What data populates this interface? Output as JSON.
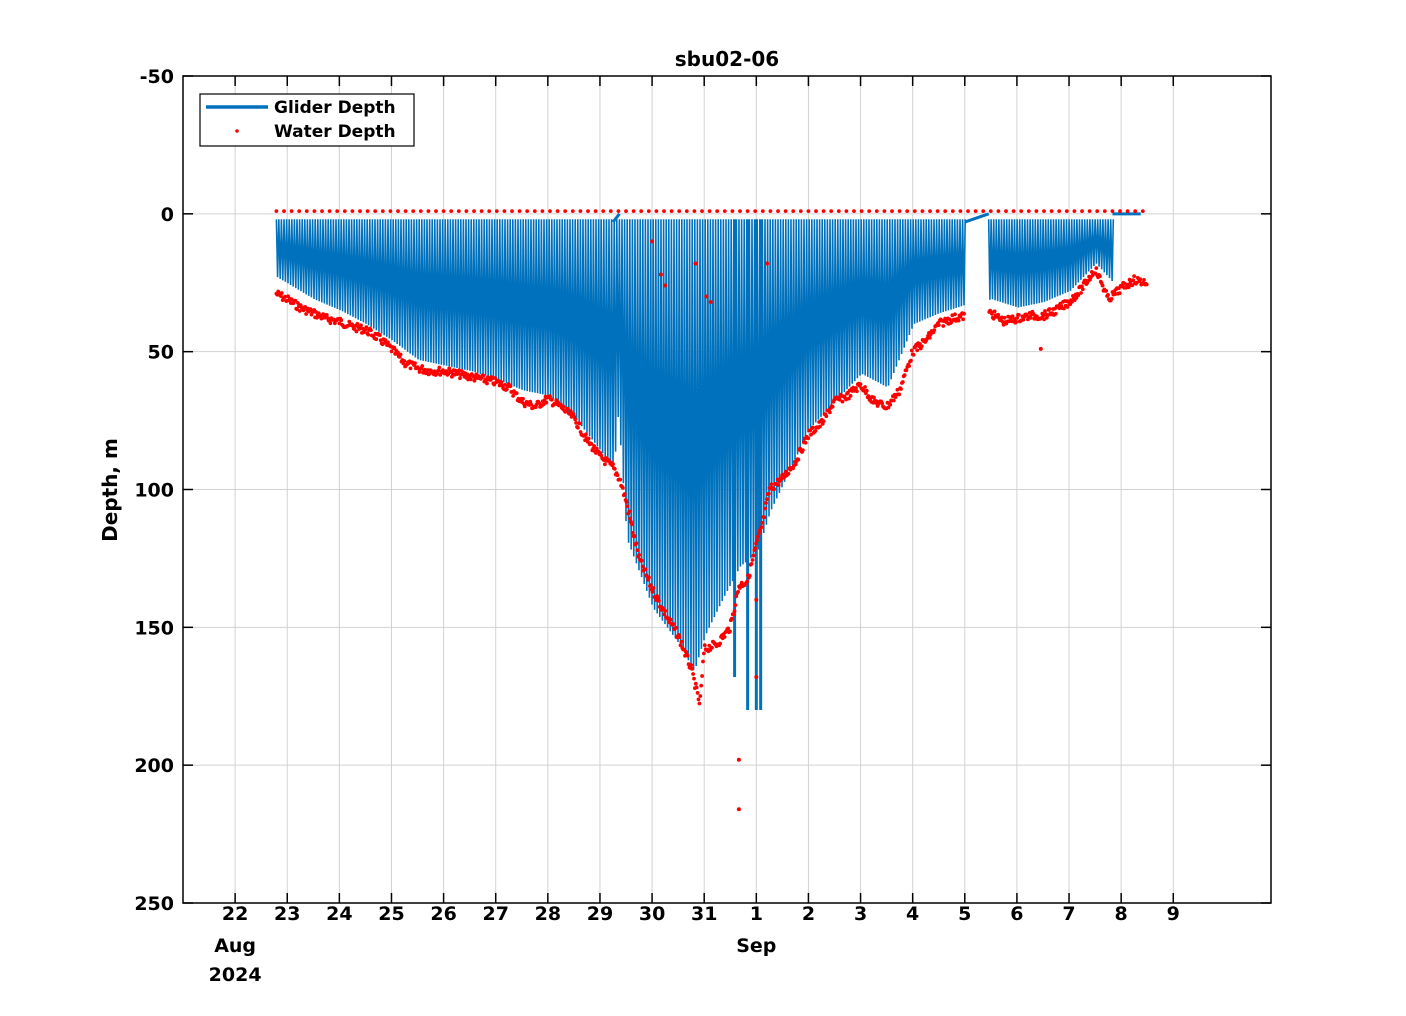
{
  "chart_data": {
    "type": "line",
    "title": "sbu02-06",
    "xlabel": "",
    "ylabel": "Depth, m",
    "y_reversed": true,
    "ylim": [
      -50,
      250
    ],
    "yticks": [
      -50,
      0,
      50,
      100,
      150,
      200,
      250
    ],
    "ytick_labels": [
      "-50",
      "0",
      "50",
      "100",
      "150",
      "200",
      "250"
    ],
    "x_axis_start": "2024-08-21T00:00",
    "xlim": [
      "2024-08-21T00:00",
      "2024-09-10T21:00"
    ],
    "xticks": [
      "2024-08-22",
      "2024-08-23",
      "2024-08-24",
      "2024-08-25",
      "2024-08-26",
      "2024-08-27",
      "2024-08-28",
      "2024-08-29",
      "2024-08-30",
      "2024-08-31",
      "2024-09-01",
      "2024-09-02",
      "2024-09-03",
      "2024-09-04",
      "2024-09-05",
      "2024-09-06",
      "2024-09-07",
      "2024-09-08",
      "2024-09-09"
    ],
    "xtick_labels": [
      "22",
      "23",
      "24",
      "25",
      "26",
      "27",
      "28",
      "29",
      "30",
      "31",
      "1",
      "2",
      "3",
      "4",
      "5",
      "6",
      "7",
      "8",
      "9"
    ],
    "secondary_labels": [
      {
        "at": "2024-08-22",
        "lines": [
          "Aug",
          "2024"
        ]
      },
      {
        "at": "2024-09-01",
        "lines": [
          "Sep"
        ]
      }
    ],
    "grid": true,
    "legend": {
      "position": "top-left",
      "entries": [
        "Glider Depth",
        "Water Depth"
      ]
    },
    "series": [
      {
        "name": "Glider Depth",
        "style": "line",
        "color": "#0072BD",
        "description_envelope_max_depth": {
          "x": [
            "2024-08-22T19:00",
            "2024-08-23T12:00",
            "2024-08-24T00:00",
            "2024-08-24T12:00",
            "2024-08-25T00:00",
            "2024-08-25T12:00",
            "2024-08-26T00:00",
            "2024-08-26T12:00",
            "2024-08-27T00:00",
            "2024-08-27T12:00",
            "2024-08-28T00:00",
            "2024-08-28T12:00",
            "2024-08-29T00:00",
            "2024-08-29T06:00",
            "2024-08-29T08:00",
            "2024-08-29T12:00",
            "2024-08-30T00:00",
            "2024-08-30T12:00",
            "2024-08-30T19:00",
            "2024-08-31T00:00",
            "2024-08-31T08:00",
            "2024-08-31T16:00",
            "2024-09-01T00:00",
            "2024-09-01T06:00",
            "2024-09-01T12:00",
            "2024-09-02T00:00",
            "2024-09-02T12:00",
            "2024-09-03T00:00",
            "2024-09-03T12:00",
            "2024-09-04T00:00",
            "2024-09-04T12:00",
            "2024-09-05T00:00",
            "2024-09-05T12:00",
            "2024-09-06T00:00",
            "2024-09-06T12:00",
            "2024-09-07T00:00",
            "2024-09-07T12:00",
            "2024-09-07T20:00"
          ],
          "y": [
            25,
            33,
            37,
            42,
            48,
            55,
            57,
            59,
            62,
            66,
            68,
            76,
            88,
            95,
            74,
            120,
            145,
            158,
            168,
            155,
            142,
            130,
            125,
            110,
            100,
            80,
            70,
            60,
            65,
            42,
            38,
            35,
            33,
            36,
            34,
            30,
            20,
            27
          ]
        }
      },
      {
        "name": "Water Depth",
        "style": "dots",
        "color": "#FF0000",
        "x": [
          "2024-08-22T19:00",
          "2024-08-23T00:00",
          "2024-08-23T06:00",
          "2024-08-23T12:00",
          "2024-08-23T18:00",
          "2024-08-24T00:00",
          "2024-08-24T06:00",
          "2024-08-24T12:00",
          "2024-08-24T18:00",
          "2024-08-25T00:00",
          "2024-08-25T06:00",
          "2024-08-25T12:00",
          "2024-08-25T18:00",
          "2024-08-26T00:00",
          "2024-08-26T06:00",
          "2024-08-26T12:00",
          "2024-08-26T18:00",
          "2024-08-27T00:00",
          "2024-08-27T06:00",
          "2024-08-27T12:00",
          "2024-08-27T18:00",
          "2024-08-28T00:00",
          "2024-08-28T06:00",
          "2024-08-28T12:00",
          "2024-08-28T18:00",
          "2024-08-29T00:00",
          "2024-08-29T06:00",
          "2024-08-29T09:00",
          "2024-08-29T12:00",
          "2024-08-29T18:00",
          "2024-08-30T00:00",
          "2024-08-30T06:00",
          "2024-08-30T12:00",
          "2024-08-30T18:00",
          "2024-08-30T22:00",
          "2024-08-31T00:00",
          "2024-08-31T06:00",
          "2024-08-31T12:00",
          "2024-08-31T16:00",
          "2024-08-31T20:00",
          "2024-09-01T00:00",
          "2024-09-01T03:00",
          "2024-09-01T06:00",
          "2024-09-01T12:00",
          "2024-09-01T18:00",
          "2024-09-02T00:00",
          "2024-09-02T06:00",
          "2024-09-02T12:00",
          "2024-09-02T18:00",
          "2024-09-03T00:00",
          "2024-09-03T06:00",
          "2024-09-03T12:00",
          "2024-09-03T18:00",
          "2024-09-04T00:00",
          "2024-09-04T06:00",
          "2024-09-04T12:00",
          "2024-09-04T18:00",
          "2024-09-05T00:00",
          "2024-09-05T12:00",
          "2024-09-05T18:00",
          "2024-09-06T00:00",
          "2024-09-06T06:00",
          "2024-09-06T12:00",
          "2024-09-06T18:00",
          "2024-09-07T00:00",
          "2024-09-07T06:00",
          "2024-09-07T12:00",
          "2024-09-07T15:00",
          "2024-09-07T18:00",
          "2024-09-08T00:00",
          "2024-09-08T06:00",
          "2024-09-08T12:00"
        ],
        "y": [
          29,
          31,
          34,
          36,
          38,
          39,
          41,
          42,
          45,
          49,
          54,
          56,
          57,
          57,
          58,
          59,
          60,
          61,
          63,
          68,
          70,
          67,
          70,
          74,
          82,
          88,
          92,
          96,
          104,
          125,
          136,
          145,
          153,
          165,
          178,
          158,
          156,
          150,
          135,
          133,
          120,
          112,
          100,
          96,
          90,
          80,
          76,
          68,
          66,
          62,
          68,
          70,
          64,
          50,
          46,
          40,
          38,
          37,
          36,
          39,
          38,
          37,
          37,
          35,
          32,
          27,
          20,
          25,
          31,
          27,
          24,
          25
        ]
      }
    ]
  }
}
